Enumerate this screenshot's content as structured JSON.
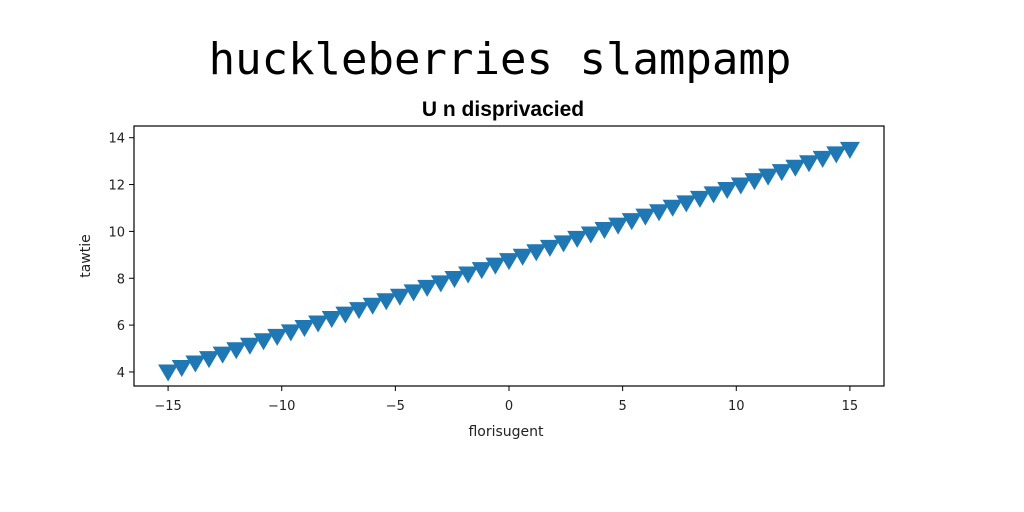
{
  "chart_data": {
    "type": "scatter",
    "title": "huckleberries slampamp",
    "subtitle": "U n disprivacied",
    "xlabel": "florisugent",
    "ylabel": "tawtie",
    "xlim": [
      -16.5,
      16.5
    ],
    "ylim": [
      3.4,
      14.5
    ],
    "xticks": [
      -15,
      -10,
      -5,
      0,
      5,
      10,
      15
    ],
    "xtick_labels": [
      "−15",
      "−10",
      "−5",
      "0",
      "5",
      "10",
      "15"
    ],
    "yticks": [
      4,
      6,
      8,
      10,
      12,
      14
    ],
    "ytick_labels": [
      "4",
      "6",
      "8",
      "10",
      "12",
      "14"
    ],
    "marker": "triangle-down",
    "color": "#1f77b4",
    "grid": false,
    "series": [
      {
        "x": [
          -15.0,
          -14.4,
          -13.8,
          -13.2,
          -12.6,
          -12.0,
          -11.4,
          -10.8,
          -10.2,
          -9.6,
          -9.0,
          -8.4,
          -7.8,
          -7.2,
          -6.6,
          -6.0,
          -5.4,
          -4.8,
          -4.2,
          -3.6,
          -3.0,
          -2.4,
          -1.8,
          -1.2,
          -0.6,
          0.0,
          0.6,
          1.2,
          1.8,
          2.4,
          3.0,
          3.6,
          4.2,
          4.8,
          5.4,
          6.0,
          6.6,
          7.2,
          7.8,
          8.4,
          9.0,
          9.6,
          10.2,
          10.8,
          11.4,
          12.0,
          12.6,
          13.2,
          13.8,
          14.4,
          15.0
        ],
        "y": [
          4.0,
          4.19,
          4.38,
          4.57,
          4.76,
          4.95,
          5.14,
          5.33,
          5.52,
          5.71,
          5.9,
          6.09,
          6.28,
          6.47,
          6.66,
          6.85,
          7.04,
          7.23,
          7.42,
          7.61,
          7.8,
          7.99,
          8.18,
          8.37,
          8.56,
          8.75,
          8.94,
          9.13,
          9.32,
          9.51,
          9.7,
          9.89,
          10.08,
          10.27,
          10.46,
          10.65,
          10.84,
          11.03,
          11.22,
          11.41,
          11.6,
          11.79,
          11.98,
          12.17,
          12.36,
          12.55,
          12.74,
          12.93,
          13.12,
          13.31,
          13.5
        ]
      }
    ]
  }
}
